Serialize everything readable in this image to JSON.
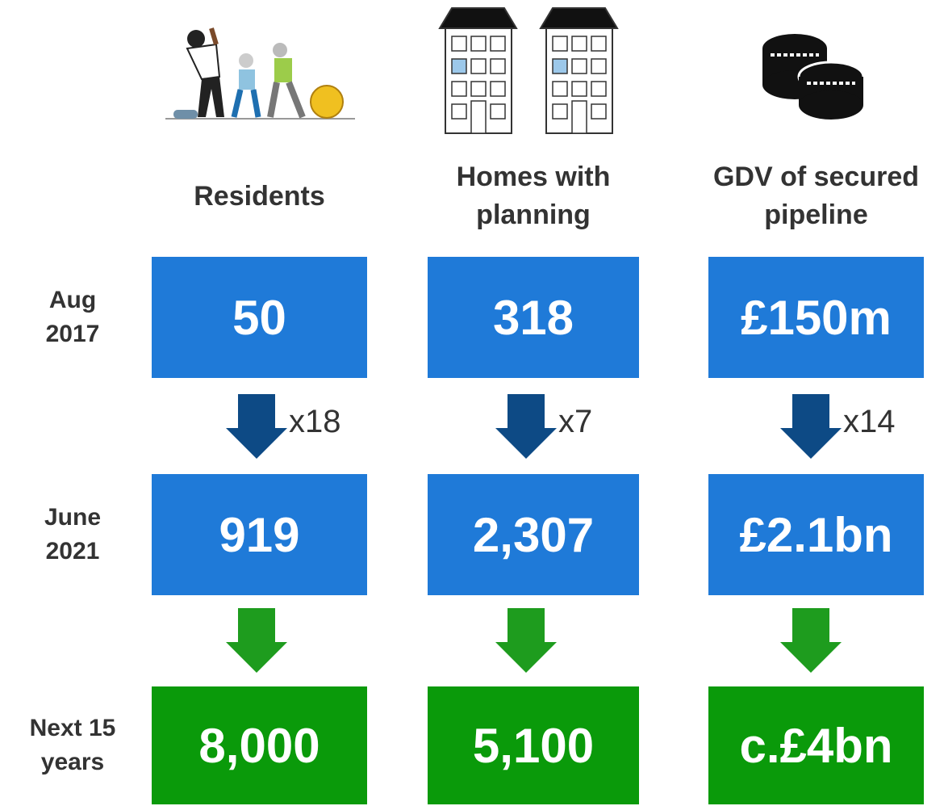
{
  "columns": [
    {
      "header": [
        "Residents"
      ],
      "values": [
        "50",
        "919",
        "8,000"
      ],
      "multiplier": "x18"
    },
    {
      "header": [
        "Homes with",
        "planning"
      ],
      "values": [
        "318",
        "2,307",
        "5,100"
      ],
      "multiplier": "x7"
    },
    {
      "header": [
        "GDV of secured",
        "pipeline"
      ],
      "values": [
        "£150m",
        "£2.1bn",
        "c.£4bn"
      ],
      "multiplier": "x14"
    }
  ],
  "rows": [
    [
      "Aug",
      "2017"
    ],
    [
      "June",
      "2021"
    ],
    [
      "Next 15",
      "years"
    ]
  ]
}
